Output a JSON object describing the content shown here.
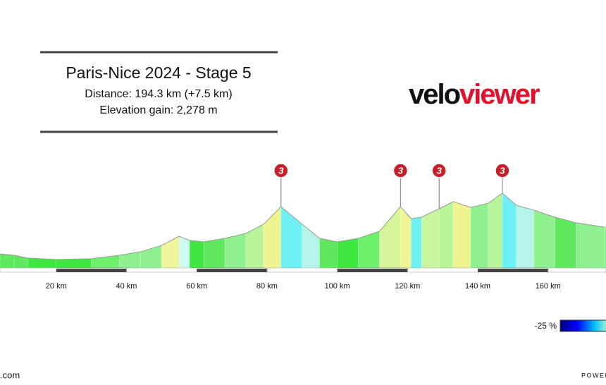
{
  "chart_data": {
    "type": "elevation-profile",
    "title": "Paris-Nice 2024 - Stage 5",
    "subtitle": "Distance: 194.3 km (+7.5 km)",
    "subtitle2": "Elevation gain: 2,278 m",
    "logo": {
      "part1": "velo",
      "part2": "viewer"
    },
    "x": [
      4,
      8,
      12,
      20,
      30,
      38,
      44,
      50,
      55,
      58,
      62,
      68,
      74,
      79,
      84,
      90,
      95,
      100,
      106,
      112,
      118,
      121,
      124,
      129,
      133,
      138,
      143,
      147,
      151,
      156,
      162,
      168,
      176
    ],
    "values": [
      133,
      120,
      93,
      80,
      87,
      120,
      153,
      213,
      300,
      260,
      247,
      280,
      327,
      413,
      580,
      413,
      280,
      247,
      280,
      347,
      580,
      467,
      480,
      560,
      627,
      573,
      613,
      707,
      593,
      547,
      480,
      427,
      387
    ],
    "colors": [
      "#5ee85e",
      "#5ee85e",
      "#3fe83f",
      "#3fe83f",
      "#6cf06c",
      "#8ef08e",
      "#8ef08e",
      "#eef59a",
      "#cffaf2",
      "#3fe83f",
      "#5ee85e",
      "#8ef08e",
      "#b8f59a",
      "#eef590",
      "#6ff0f2",
      "#b4f5e8",
      "#5ee85e",
      "#3fe83f",
      "#6cf06c",
      "#d6f59a",
      "#eef590",
      "#6ff0f2",
      "#c8f5a0",
      "#b8f59a",
      "#eef590",
      "#8ef08e",
      "#b8f59a",
      "#6ff0f2",
      "#b4f5e8",
      "#8ef08e",
      "#5ee85e",
      "#8ef08e",
      "#8ef08e"
    ],
    "climbs": [
      {
        "km": 84,
        "category": "3"
      },
      {
        "km": 118,
        "category": "3"
      },
      {
        "km": 129,
        "category": "3"
      },
      {
        "km": 147,
        "category": "3"
      }
    ],
    "xlim": [
      4,
      176.5
    ],
    "ylim": [
      0,
      1000
    ],
    "xticks": [
      {
        "value": 20,
        "label": "20 km"
      },
      {
        "value": 40,
        "label": "40 km"
      },
      {
        "value": 60,
        "label": "60 km"
      },
      {
        "value": 80,
        "label": "80 km"
      },
      {
        "value": 100,
        "label": "100 km"
      },
      {
        "value": 120,
        "label": "120 km"
      },
      {
        "value": 140,
        "label": "140 km"
      },
      {
        "value": 160,
        "label": "160 km"
      }
    ],
    "legend_label": "-25 %",
    "footer_left": ".com",
    "footer_right": "POWERF"
  }
}
